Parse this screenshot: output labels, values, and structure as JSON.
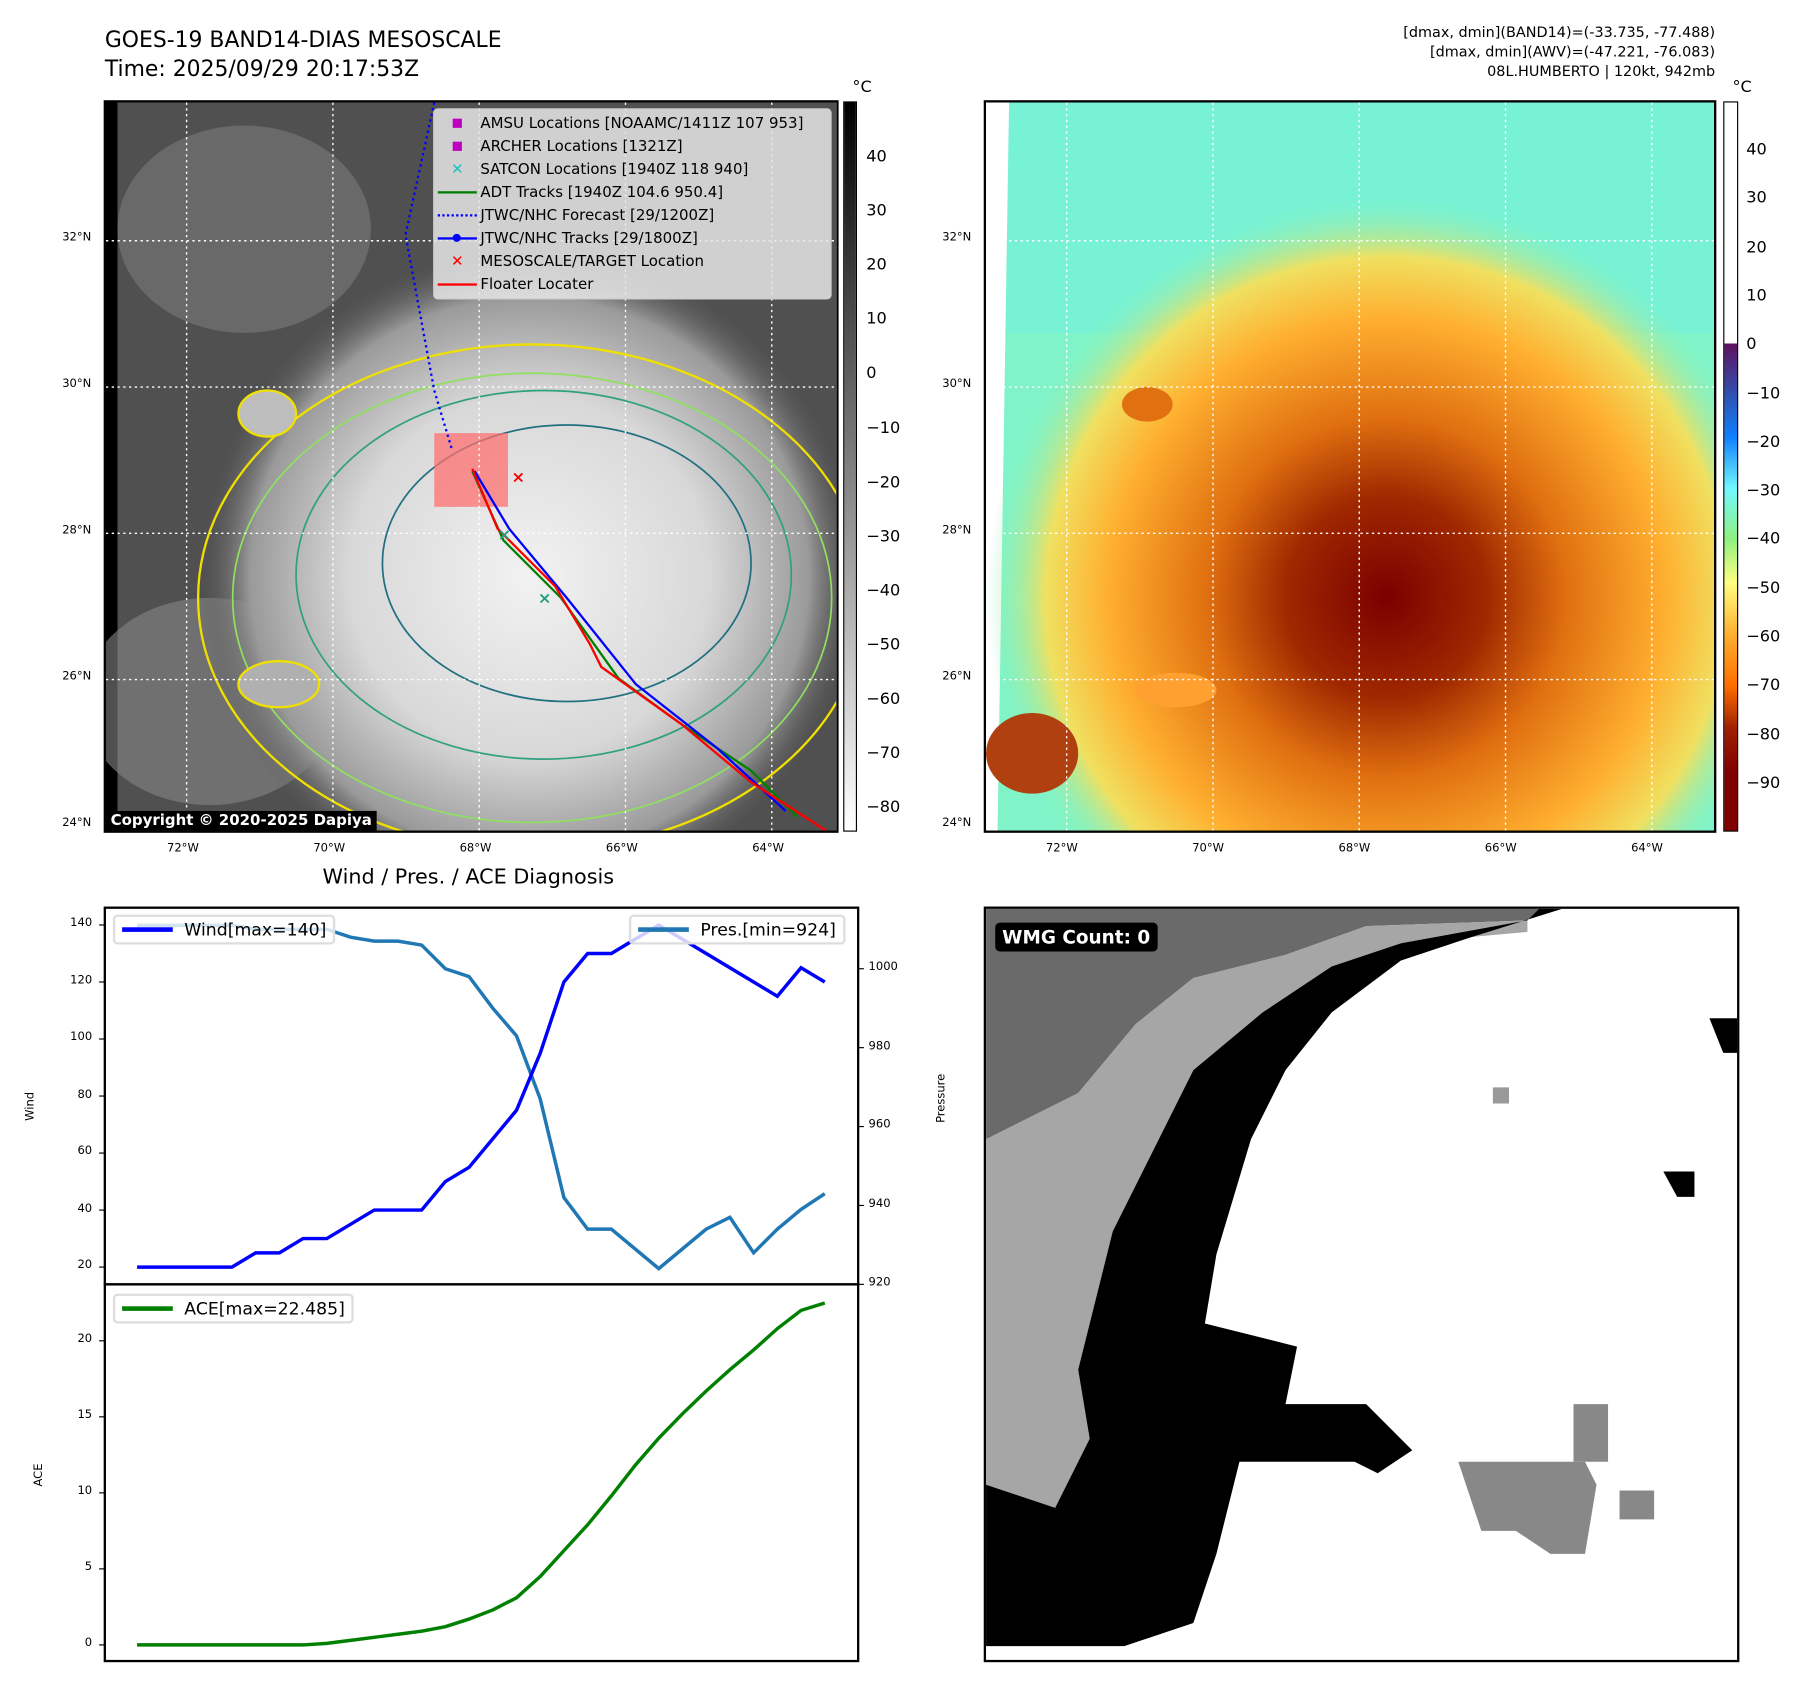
{
  "header": {
    "title_line1": "GOES-19 BAND14-DIAS MESOSCALE",
    "title_line2": "Time: 2025/09/29 20:17:53Z",
    "info_line1": "[dmax, dmin](BAND14)=(-33.735, -77.488)",
    "info_line2": "[dmax, dmin](AWV)=(-47.221, -76.083)",
    "info_line3": "08L.HUMBERTO | 120kt, 942mb"
  },
  "map_axes": {
    "lat_labels": [
      "32°N",
      "30°N",
      "28°N",
      "26°N",
      "24°N"
    ],
    "lon_labels": [
      "72°W",
      "70°W",
      "68°W",
      "66°W",
      "64°W"
    ]
  },
  "left_map": {
    "colorbar_unit": "°C",
    "colorbar_ticks": [
      "40",
      "30",
      "20",
      "10",
      "0",
      "−10",
      "−20",
      "−30",
      "−40",
      "−50",
      "−60",
      "−70",
      "−80"
    ],
    "copyright": "Copyright © 2020-2025 Dapiya",
    "legend": [
      {
        "label": "AMSU Locations [NOAAMC/1411Z 107 953]",
        "icon": "square-marker",
        "color": "#c000c0"
      },
      {
        "label": "ARCHER Locations [1321Z]",
        "icon": "square-marker",
        "color": "#c000c0"
      },
      {
        "label": "SATCON Locations [1940Z 118 940]",
        "icon": "x-marker",
        "color": "#20c0c0"
      },
      {
        "label": "ADT Tracks [1940Z 104.6 950.4]",
        "icon": "solid-line",
        "color": "#008000"
      },
      {
        "label": "JTWC/NHC Forecast [29/1200Z]",
        "icon": "dotted-line",
        "color": "#0000ff"
      },
      {
        "label": "JTWC/NHC Tracks [29/1800Z]",
        "icon": "line-dot",
        "color": "#0000ff"
      },
      {
        "label": "MESOSCALE/TARGET Location",
        "icon": "x-marker",
        "color": "#ff0000"
      },
      {
        "label": "Floater Locater",
        "icon": "solid-line",
        "color": "#ff0000"
      }
    ]
  },
  "right_map": {
    "colorbar_unit": "°C",
    "colorbar_ticks": [
      "40",
      "30",
      "20",
      "10",
      "0",
      "−10",
      "−20",
      "−30",
      "−40",
      "−50",
      "−60",
      "−70",
      "−80",
      "−90"
    ]
  },
  "wmg_panel": {
    "label": "WMG Count: 0"
  },
  "chart_data": [
    {
      "type": "line",
      "title": "Wind / Pres. / ACE Diagnosis",
      "ylabel": "Wind",
      "y2label": "Pressure",
      "ylim": [
        20,
        140
      ],
      "y2lim": [
        920,
        1011
      ],
      "yticks": [
        "140",
        "120",
        "100",
        "80",
        "60",
        "40",
        "20"
      ],
      "y2ticks": [
        "1000",
        "980",
        "960",
        "940",
        "920"
      ],
      "series": [
        {
          "name": "Wind[max=140]",
          "color": "#0000ff",
          "axis": "left",
          "values": [
            20,
            20,
            20,
            20,
            20,
            25,
            25,
            30,
            30,
            35,
            40,
            40,
            40,
            50,
            55,
            65,
            75,
            95,
            120,
            130,
            130,
            135,
            140,
            135,
            130,
            125,
            120,
            115,
            125,
            120
          ]
        },
        {
          "name": "Pres.[min=924]",
          "color": "#1f77b4",
          "axis": "right",
          "values": [
            1011,
            1011,
            1011,
            1011,
            1011,
            1010,
            1010,
            1010,
            1010,
            1008,
            1007,
            1007,
            1006,
            1000,
            998,
            990,
            983,
            967,
            942,
            934,
            934,
            929,
            924,
            929,
            934,
            937,
            928,
            934,
            939,
            943
          ]
        }
      ]
    },
    {
      "type": "line",
      "ylabel": "ACE",
      "ylim": [
        0,
        22.5
      ],
      "yticks": [
        "20",
        "15",
        "10",
        "5",
        "0"
      ],
      "series": [
        {
          "name": "ACE[max=22.485]",
          "color": "#008000",
          "values": [
            0,
            0,
            0,
            0,
            0,
            0,
            0,
            0,
            0.1,
            0.3,
            0.5,
            0.7,
            0.9,
            1.2,
            1.7,
            2.3,
            3.1,
            4.5,
            6.2,
            7.9,
            9.8,
            11.8,
            13.6,
            15.2,
            16.7,
            18.1,
            19.4,
            20.8,
            22.0,
            22.485
          ]
        }
      ]
    }
  ]
}
